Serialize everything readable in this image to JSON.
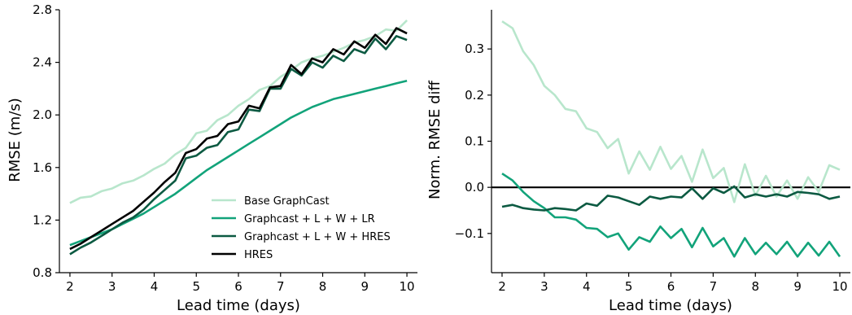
{
  "colors": {
    "Base GraphCast": "#b8e6cc",
    "Graphcast + L + W + LR": "#12a37a",
    "Graphcast + L + W + HRES": "#0c5a42",
    "HRES": "#000000"
  },
  "chart_data": [
    {
      "type": "line",
      "title": "",
      "xlabel": "Lead time (days)",
      "ylabel": "RMSE (m/s)",
      "xlim": [
        1.75,
        10.25
      ],
      "ylim": [
        0.8,
        2.8
      ],
      "xticks": [
        "2",
        "3",
        "4",
        "5",
        "6",
        "7",
        "8",
        "9",
        "10"
      ],
      "yticks": [
        "0.8",
        "1.2",
        "1.6",
        "2.0",
        "2.4",
        "2.8"
      ],
      "legend": "lower-right",
      "x": [
        2.0,
        2.25,
        2.5,
        2.75,
        3.0,
        3.25,
        3.5,
        3.75,
        4.0,
        4.25,
        4.5,
        4.75,
        5.0,
        5.25,
        5.5,
        5.75,
        6.0,
        6.25,
        6.5,
        6.75,
        7.0,
        7.25,
        7.5,
        7.75,
        8.0,
        8.25,
        8.5,
        8.75,
        9.0,
        9.25,
        9.5,
        9.75,
        10.0
      ],
      "series": [
        {
          "name": "Base GraphCast",
          "values": [
            1.33,
            1.37,
            1.38,
            1.42,
            1.44,
            1.48,
            1.5,
            1.54,
            1.59,
            1.63,
            1.7,
            1.75,
            1.86,
            1.88,
            1.96,
            2.0,
            2.07,
            2.12,
            2.19,
            2.22,
            2.29,
            2.34,
            2.4,
            2.43,
            2.45,
            2.48,
            2.51,
            2.55,
            2.57,
            2.6,
            2.65,
            2.64,
            2.72
          ]
        },
        {
          "name": "Graphcast + L + W + LR",
          "values": [
            1.01,
            1.04,
            1.07,
            1.1,
            1.13,
            1.17,
            1.21,
            1.25,
            1.3,
            1.35,
            1.4,
            1.46,
            1.52,
            1.58,
            1.63,
            1.68,
            1.73,
            1.78,
            1.83,
            1.88,
            1.93,
            1.98,
            2.02,
            2.06,
            2.09,
            2.12,
            2.14,
            2.16,
            2.18,
            2.2,
            2.22,
            2.24,
            2.26
          ]
        },
        {
          "name": "Graphcast + L + W + HRES",
          "values": [
            0.94,
            0.99,
            1.03,
            1.08,
            1.13,
            1.18,
            1.22,
            1.28,
            1.36,
            1.43,
            1.5,
            1.67,
            1.69,
            1.75,
            1.77,
            1.87,
            1.89,
            2.04,
            2.03,
            2.2,
            2.2,
            2.35,
            2.3,
            2.4,
            2.36,
            2.45,
            2.41,
            2.5,
            2.47,
            2.58,
            2.5,
            2.6,
            2.57
          ]
        },
        {
          "name": "HRES",
          "values": [
            0.98,
            1.02,
            1.07,
            1.12,
            1.17,
            1.22,
            1.27,
            1.34,
            1.41,
            1.49,
            1.56,
            1.71,
            1.74,
            1.82,
            1.84,
            1.93,
            1.95,
            2.07,
            2.05,
            2.21,
            2.22,
            2.38,
            2.31,
            2.43,
            2.4,
            2.5,
            2.46,
            2.56,
            2.51,
            2.61,
            2.54,
            2.66,
            2.62
          ]
        }
      ]
    },
    {
      "type": "line",
      "title": "",
      "xlabel": "Lead time (days)",
      "ylabel": "Norm. RMSE diff",
      "xlim": [
        1.75,
        10.25
      ],
      "ylim": [
        -0.185,
        0.385
      ],
      "xticks": [
        "2",
        "3",
        "4",
        "5",
        "6",
        "7",
        "8",
        "9",
        "10"
      ],
      "yticks": [
        "−0.1",
        "0.0",
        "0.1",
        "0.2",
        "0.3"
      ],
      "reference_line": 0.0,
      "x": [
        2.0,
        2.25,
        2.5,
        2.75,
        3.0,
        3.25,
        3.5,
        3.75,
        4.0,
        4.25,
        4.5,
        4.75,
        5.0,
        5.25,
        5.5,
        5.75,
        6.0,
        6.25,
        6.5,
        6.75,
        7.0,
        7.25,
        7.5,
        7.75,
        8.0,
        8.25,
        8.5,
        8.75,
        9.0,
        9.25,
        9.5,
        9.75,
        10.0
      ],
      "series": [
        {
          "name": "Base GraphCast",
          "values": [
            0.36,
            0.345,
            0.295,
            0.265,
            0.22,
            0.2,
            0.17,
            0.165,
            0.128,
            0.12,
            0.085,
            0.105,
            0.03,
            0.078,
            0.038,
            0.088,
            0.04,
            0.068,
            0.012,
            0.082,
            0.02,
            0.042,
            -0.032,
            0.05,
            -0.018,
            0.025,
            -0.02,
            0.015,
            -0.025,
            0.022,
            -0.01,
            0.048,
            0.038
          ]
        },
        {
          "name": "Graphcast + L + W + LR",
          "values": [
            0.03,
            0.015,
            -0.01,
            -0.03,
            -0.045,
            -0.065,
            -0.065,
            -0.07,
            -0.088,
            -0.09,
            -0.108,
            -0.1,
            -0.135,
            -0.108,
            -0.118,
            -0.085,
            -0.11,
            -0.09,
            -0.13,
            -0.088,
            -0.128,
            -0.11,
            -0.15,
            -0.11,
            -0.145,
            -0.12,
            -0.145,
            -0.118,
            -0.15,
            -0.12,
            -0.148,
            -0.118,
            -0.15
          ]
        },
        {
          "name": "Graphcast + L + W + HRES",
          "values": [
            -0.042,
            -0.038,
            -0.045,
            -0.048,
            -0.05,
            -0.045,
            -0.047,
            -0.05,
            -0.035,
            -0.04,
            -0.018,
            -0.022,
            -0.03,
            -0.038,
            -0.02,
            -0.025,
            -0.02,
            -0.022,
            -0.002,
            -0.025,
            -0.002,
            -0.012,
            0.002,
            -0.022,
            -0.015,
            -0.02,
            -0.015,
            -0.02,
            -0.01,
            -0.012,
            -0.015,
            -0.025,
            -0.02
          ]
        },
        {
          "name": "HRES",
          "values": [
            0.0,
            0.0,
            0.0,
            0.0,
            0.0,
            0.0,
            0.0,
            0.0,
            0.0,
            0.0,
            0.0,
            0.0,
            0.0,
            0.0,
            0.0,
            0.0,
            0.0,
            0.0,
            0.0,
            0.0,
            0.0,
            0.0,
            0.0,
            0.0,
            0.0,
            0.0,
            0.0,
            0.0,
            0.0,
            0.0,
            0.0,
            0.0,
            0.0
          ]
        }
      ]
    }
  ]
}
